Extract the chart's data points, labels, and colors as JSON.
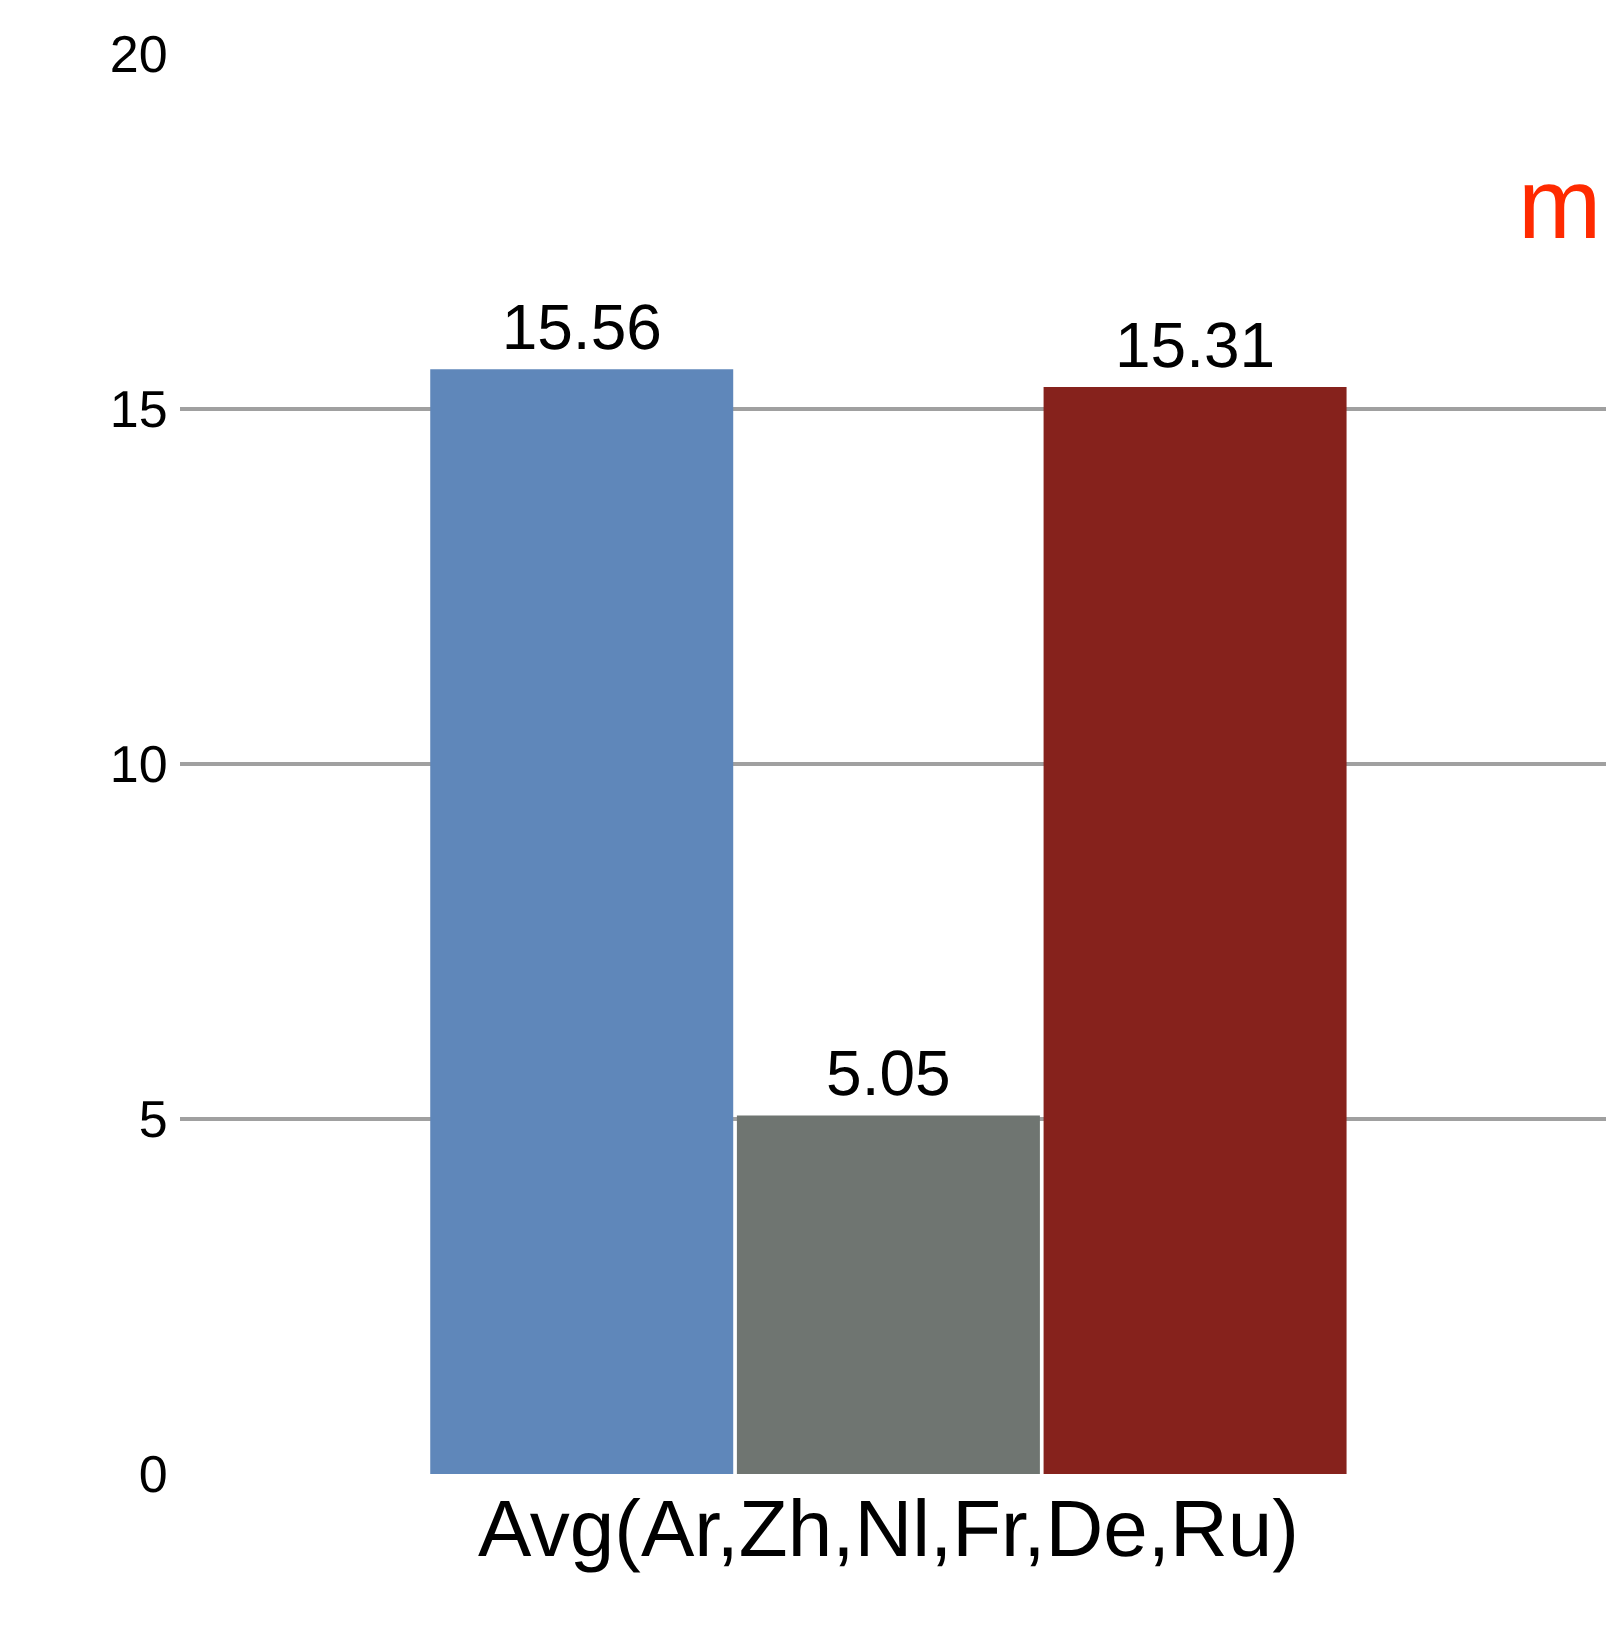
{
  "chart_data": {
    "type": "bar",
    "categories": [
      null,
      "Avg(Ar,Zh,Nl,Fr,De,Ru)",
      null
    ],
    "values": [
      15.56,
      5.05,
      15.31
    ],
    "colors": [
      "#5f87ba",
      "#6f7571",
      "#86221c"
    ],
    "ylim": [
      0,
      20
    ],
    "yticks": [
      0,
      5,
      10,
      15,
      20
    ],
    "grid": "y",
    "data_labels": true,
    "annotations": [
      "m"
    ]
  }
}
